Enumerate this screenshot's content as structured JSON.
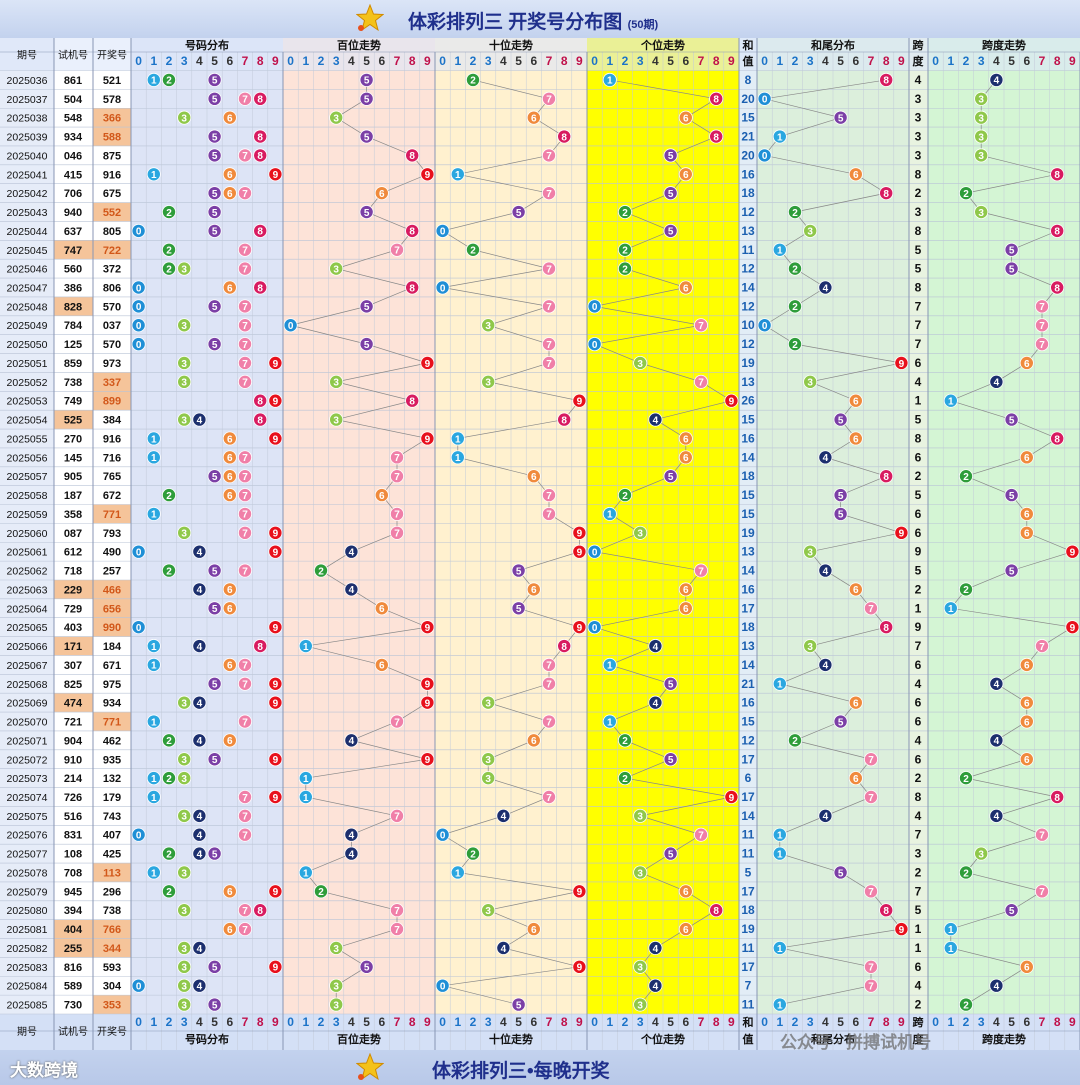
{
  "header": {
    "title": "体彩排列三 开奖号分布图",
    "subtitle": "(50期)",
    "logo_text": "排列3"
  },
  "footer": {
    "title": "体彩排列三•每晚开奖",
    "brand": "大数跨境",
    "watermark": "公众号 · 拼搏试机号"
  },
  "columns": {
    "period": "期号",
    "trial": "试机号",
    "draw": "开奖号",
    "dist": "号码分布",
    "hundreds": "百位走势",
    "tens": "十位走势",
    "units": "个位走势",
    "sum_top": "和",
    "sum_bottom": "值",
    "sumtail": "和尾分布",
    "span_top": "跨",
    "span_bottom": "度",
    "spantrend": "跨度走势"
  },
  "digits": [
    "0",
    "1",
    "2",
    "3",
    "4",
    "5",
    "6",
    "7",
    "8",
    "9"
  ],
  "colors": {
    "0": "#1f8fd6",
    "1": "#2aa7e0",
    "2": "#2e9d3a",
    "3": "#8fc84a",
    "4": "#1c2f6e",
    "5": "#7b3fa6",
    "6": "#f08a3c",
    "7": "#f07fa8",
    "8": "#d81b60",
    "9": "#e8101c",
    "highlight_row": "#f5c49a",
    "units_bg": "#ffff00"
  },
  "chart_data": {
    "type": "table",
    "title": "体彩排列三 开奖号分布图",
    "records": [
      {
        "period": "2025036",
        "trial": "861",
        "draw": "521",
        "sum": "8",
        "span": "4",
        "hl": false
      },
      {
        "period": "2025037",
        "trial": "504",
        "draw": "578",
        "sum": "20",
        "span": "3",
        "hl": false
      },
      {
        "period": "2025038",
        "trial": "548",
        "draw": "366",
        "sum": "15",
        "span": "3",
        "hl": true
      },
      {
        "period": "2025039",
        "trial": "934",
        "draw": "588",
        "sum": "21",
        "span": "3",
        "hl": true
      },
      {
        "period": "2025040",
        "trial": "046",
        "draw": "875",
        "sum": "20",
        "span": "3",
        "hl": false
      },
      {
        "period": "2025041",
        "trial": "415",
        "draw": "916",
        "sum": "16",
        "span": "8",
        "hl": false
      },
      {
        "period": "2025042",
        "trial": "706",
        "draw": "675",
        "sum": "18",
        "span": "2",
        "hl": false
      },
      {
        "period": "2025043",
        "trial": "940",
        "draw": "552",
        "sum": "12",
        "span": "3",
        "hl": true
      },
      {
        "period": "2025044",
        "trial": "637",
        "draw": "805",
        "sum": "13",
        "span": "8",
        "hl": false
      },
      {
        "period": "2025045",
        "trial": "747",
        "draw": "722",
        "sum": "11",
        "span": "5",
        "hl": "both"
      },
      {
        "period": "2025046",
        "trial": "560",
        "draw": "372",
        "sum": "12",
        "span": "5",
        "hl": false
      },
      {
        "period": "2025047",
        "trial": "386",
        "draw": "806",
        "sum": "14",
        "span": "8",
        "hl": false
      },
      {
        "period": "2025048",
        "trial": "828",
        "draw": "570",
        "sum": "12",
        "span": "7",
        "hl": "trial"
      },
      {
        "period": "2025049",
        "trial": "784",
        "draw": "037",
        "sum": "10",
        "span": "7",
        "hl": false
      },
      {
        "period": "2025050",
        "trial": "125",
        "draw": "570",
        "sum": "12",
        "span": "7",
        "hl": false
      },
      {
        "period": "2025051",
        "trial": "859",
        "draw": "973",
        "sum": "19",
        "span": "6",
        "hl": false
      },
      {
        "period": "2025052",
        "trial": "738",
        "draw": "337",
        "sum": "13",
        "span": "4",
        "hl": true
      },
      {
        "period": "2025053",
        "trial": "749",
        "draw": "899",
        "sum": "26",
        "span": "1",
        "hl": true
      },
      {
        "period": "2025054",
        "trial": "525",
        "draw": "384",
        "sum": "15",
        "span": "5",
        "hl": "trial"
      },
      {
        "period": "2025055",
        "trial": "270",
        "draw": "916",
        "sum": "16",
        "span": "8",
        "hl": false
      },
      {
        "period": "2025056",
        "trial": "145",
        "draw": "716",
        "sum": "14",
        "span": "6",
        "hl": false
      },
      {
        "period": "2025057",
        "trial": "905",
        "draw": "765",
        "sum": "18",
        "span": "2",
        "hl": false
      },
      {
        "period": "2025058",
        "trial": "187",
        "draw": "672",
        "sum": "15",
        "span": "5",
        "hl": false
      },
      {
        "period": "2025059",
        "trial": "358",
        "draw": "771",
        "sum": "15",
        "span": "6",
        "hl": true
      },
      {
        "period": "2025060",
        "trial": "087",
        "draw": "793",
        "sum": "19",
        "span": "6",
        "hl": false
      },
      {
        "period": "2025061",
        "trial": "612",
        "draw": "490",
        "sum": "13",
        "span": "9",
        "hl": false
      },
      {
        "period": "2025062",
        "trial": "718",
        "draw": "257",
        "sum": "14",
        "span": "5",
        "hl": false
      },
      {
        "period": "2025063",
        "trial": "229",
        "draw": "466",
        "sum": "16",
        "span": "2",
        "hl": "both"
      },
      {
        "period": "2025064",
        "trial": "729",
        "draw": "656",
        "sum": "17",
        "span": "1",
        "hl": true
      },
      {
        "period": "2025065",
        "trial": "403",
        "draw": "990",
        "sum": "18",
        "span": "9",
        "hl": true
      },
      {
        "period": "2025066",
        "trial": "171",
        "draw": "184",
        "sum": "13",
        "span": "7",
        "hl": "trial"
      },
      {
        "period": "2025067",
        "trial": "307",
        "draw": "671",
        "sum": "14",
        "span": "6",
        "hl": false
      },
      {
        "period": "2025068",
        "trial": "825",
        "draw": "975",
        "sum": "21",
        "span": "4",
        "hl": false
      },
      {
        "period": "2025069",
        "trial": "474",
        "draw": "934",
        "sum": "16",
        "span": "6",
        "hl": "trial"
      },
      {
        "period": "2025070",
        "trial": "721",
        "draw": "771",
        "sum": "15",
        "span": "6",
        "hl": true
      },
      {
        "period": "2025071",
        "trial": "904",
        "draw": "462",
        "sum": "12",
        "span": "4",
        "hl": false
      },
      {
        "period": "2025072",
        "trial": "910",
        "draw": "935",
        "sum": "17",
        "span": "6",
        "hl": false
      },
      {
        "period": "2025073",
        "trial": "214",
        "draw": "132",
        "sum": "6",
        "span": "2",
        "hl": false
      },
      {
        "period": "2025074",
        "trial": "726",
        "draw": "179",
        "sum": "17",
        "span": "8",
        "hl": false
      },
      {
        "period": "2025075",
        "trial": "516",
        "draw": "743",
        "sum": "14",
        "span": "4",
        "hl": false
      },
      {
        "period": "2025076",
        "trial": "831",
        "draw": "407",
        "sum": "11",
        "span": "7",
        "hl": false
      },
      {
        "period": "2025077",
        "trial": "108",
        "draw": "425",
        "sum": "11",
        "span": "3",
        "hl": false
      },
      {
        "period": "2025078",
        "trial": "708",
        "draw": "113",
        "sum": "5",
        "span": "2",
        "hl": true
      },
      {
        "period": "2025079",
        "trial": "945",
        "draw": "296",
        "sum": "17",
        "span": "7",
        "hl": false
      },
      {
        "period": "2025080",
        "trial": "394",
        "draw": "738",
        "sum": "18",
        "span": "5",
        "hl": false
      },
      {
        "period": "2025081",
        "trial": "404",
        "draw": "766",
        "sum": "19",
        "span": "1",
        "hl": "both"
      },
      {
        "period": "2025082",
        "trial": "255",
        "draw": "344",
        "sum": "11",
        "span": "1",
        "hl": "both"
      },
      {
        "period": "2025083",
        "trial": "816",
        "draw": "593",
        "sum": "17",
        "span": "6",
        "hl": false
      },
      {
        "period": "2025084",
        "trial": "589",
        "draw": "304",
        "sum": "7",
        "span": "4",
        "hl": false
      },
      {
        "period": "2025085",
        "trial": "730",
        "draw": "353",
        "sum": "11",
        "span": "2",
        "hl": true
      }
    ]
  }
}
